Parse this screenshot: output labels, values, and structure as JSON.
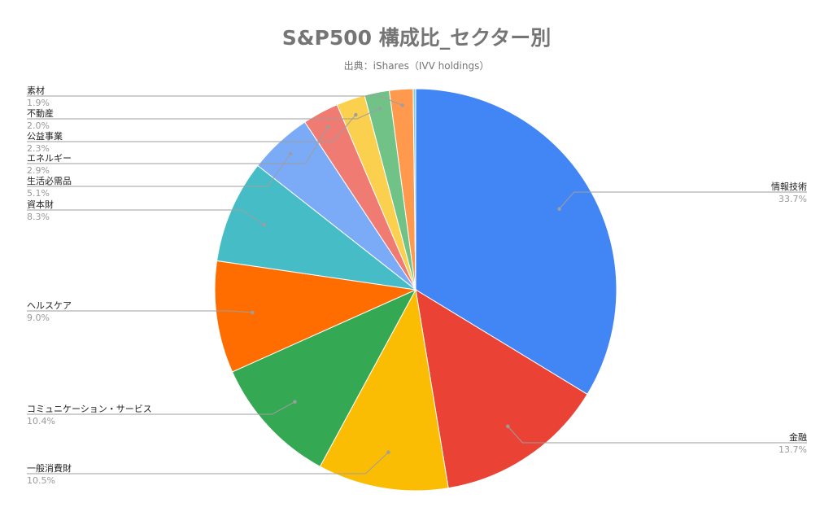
{
  "chart_data": {
    "type": "pie",
    "title": "S&P500 構成比_セクター別",
    "subtitle": "出典：iShares（IVV holdings）",
    "slices": [
      {
        "label": "情報技術",
        "value": 33.7,
        "display": "33.7%",
        "color": "#4285f4"
      },
      {
        "label": "金融",
        "value": 13.7,
        "display": "13.7%",
        "color": "#ea4335"
      },
      {
        "label": "一般消費財",
        "value": 10.5,
        "display": "10.5%",
        "color": "#fbbc04"
      },
      {
        "label": "コミュニケーション・サービス",
        "value": 10.4,
        "display": "10.4%",
        "color": "#34a853"
      },
      {
        "label": "ヘルスケア",
        "value": 9.0,
        "display": "9.0%",
        "color": "#ff6d01"
      },
      {
        "label": "資本財",
        "value": 8.3,
        "display": "8.3%",
        "color": "#46bdc6"
      },
      {
        "label": "生活必需品",
        "value": 5.1,
        "display": "5.1%",
        "color": "#7baaf7"
      },
      {
        "label": "エネルギー",
        "value": 2.9,
        "display": "2.9%",
        "color": "#f07b72"
      },
      {
        "label": "公益事業",
        "value": 2.3,
        "display": "2.3%",
        "color": "#fcd04f"
      },
      {
        "label": "不動産",
        "value": 2.0,
        "display": "2.0%",
        "color": "#71c287"
      },
      {
        "label": "素材",
        "value": 1.9,
        "display": "1.9%",
        "color": "#ff994d"
      },
      {
        "label": "",
        "value": 0.2,
        "display": "",
        "color": "#7ed1d7"
      }
    ]
  }
}
